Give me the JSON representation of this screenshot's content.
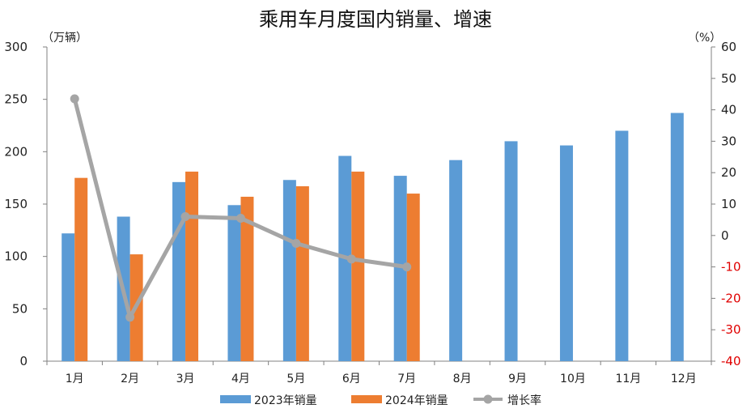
{
  "chart_data": {
    "type": "bar",
    "title": "乘用车月度国内销量、增速",
    "y_left_unit": "（万辆）",
    "y_right_unit": "（%）",
    "categories": [
      "1月",
      "2月",
      "3月",
      "4月",
      "5月",
      "6月",
      "7月",
      "8月",
      "9月",
      "10月",
      "11月",
      "12月"
    ],
    "series": [
      {
        "name": "2023年销量",
        "type": "bar",
        "axis": "left",
        "color": "#5B9BD5",
        "values": [
          122,
          138,
          171,
          149,
          173,
          196,
          177,
          192,
          210,
          206,
          220,
          237
        ]
      },
      {
        "name": "2024年销量",
        "type": "bar",
        "axis": "left",
        "color": "#ED7D31",
        "values": [
          175,
          102,
          181,
          157,
          167,
          181,
          160,
          null,
          null,
          null,
          null,
          null
        ]
      },
      {
        "name": "增长率",
        "type": "line",
        "axis": "right",
        "color": "#A5A5A5",
        "values": [
          43.5,
          -26.0,
          6.0,
          5.5,
          -2.5,
          -7.5,
          -10.0,
          null,
          null,
          null,
          null,
          null
        ]
      }
    ],
    "y_left": {
      "min": 0,
      "max": 300,
      "step": 50
    },
    "y_right": {
      "min": -40,
      "max": 60,
      "step": 10,
      "negative_color": "#E00000"
    },
    "grid": false,
    "legend_position": "bottom"
  }
}
